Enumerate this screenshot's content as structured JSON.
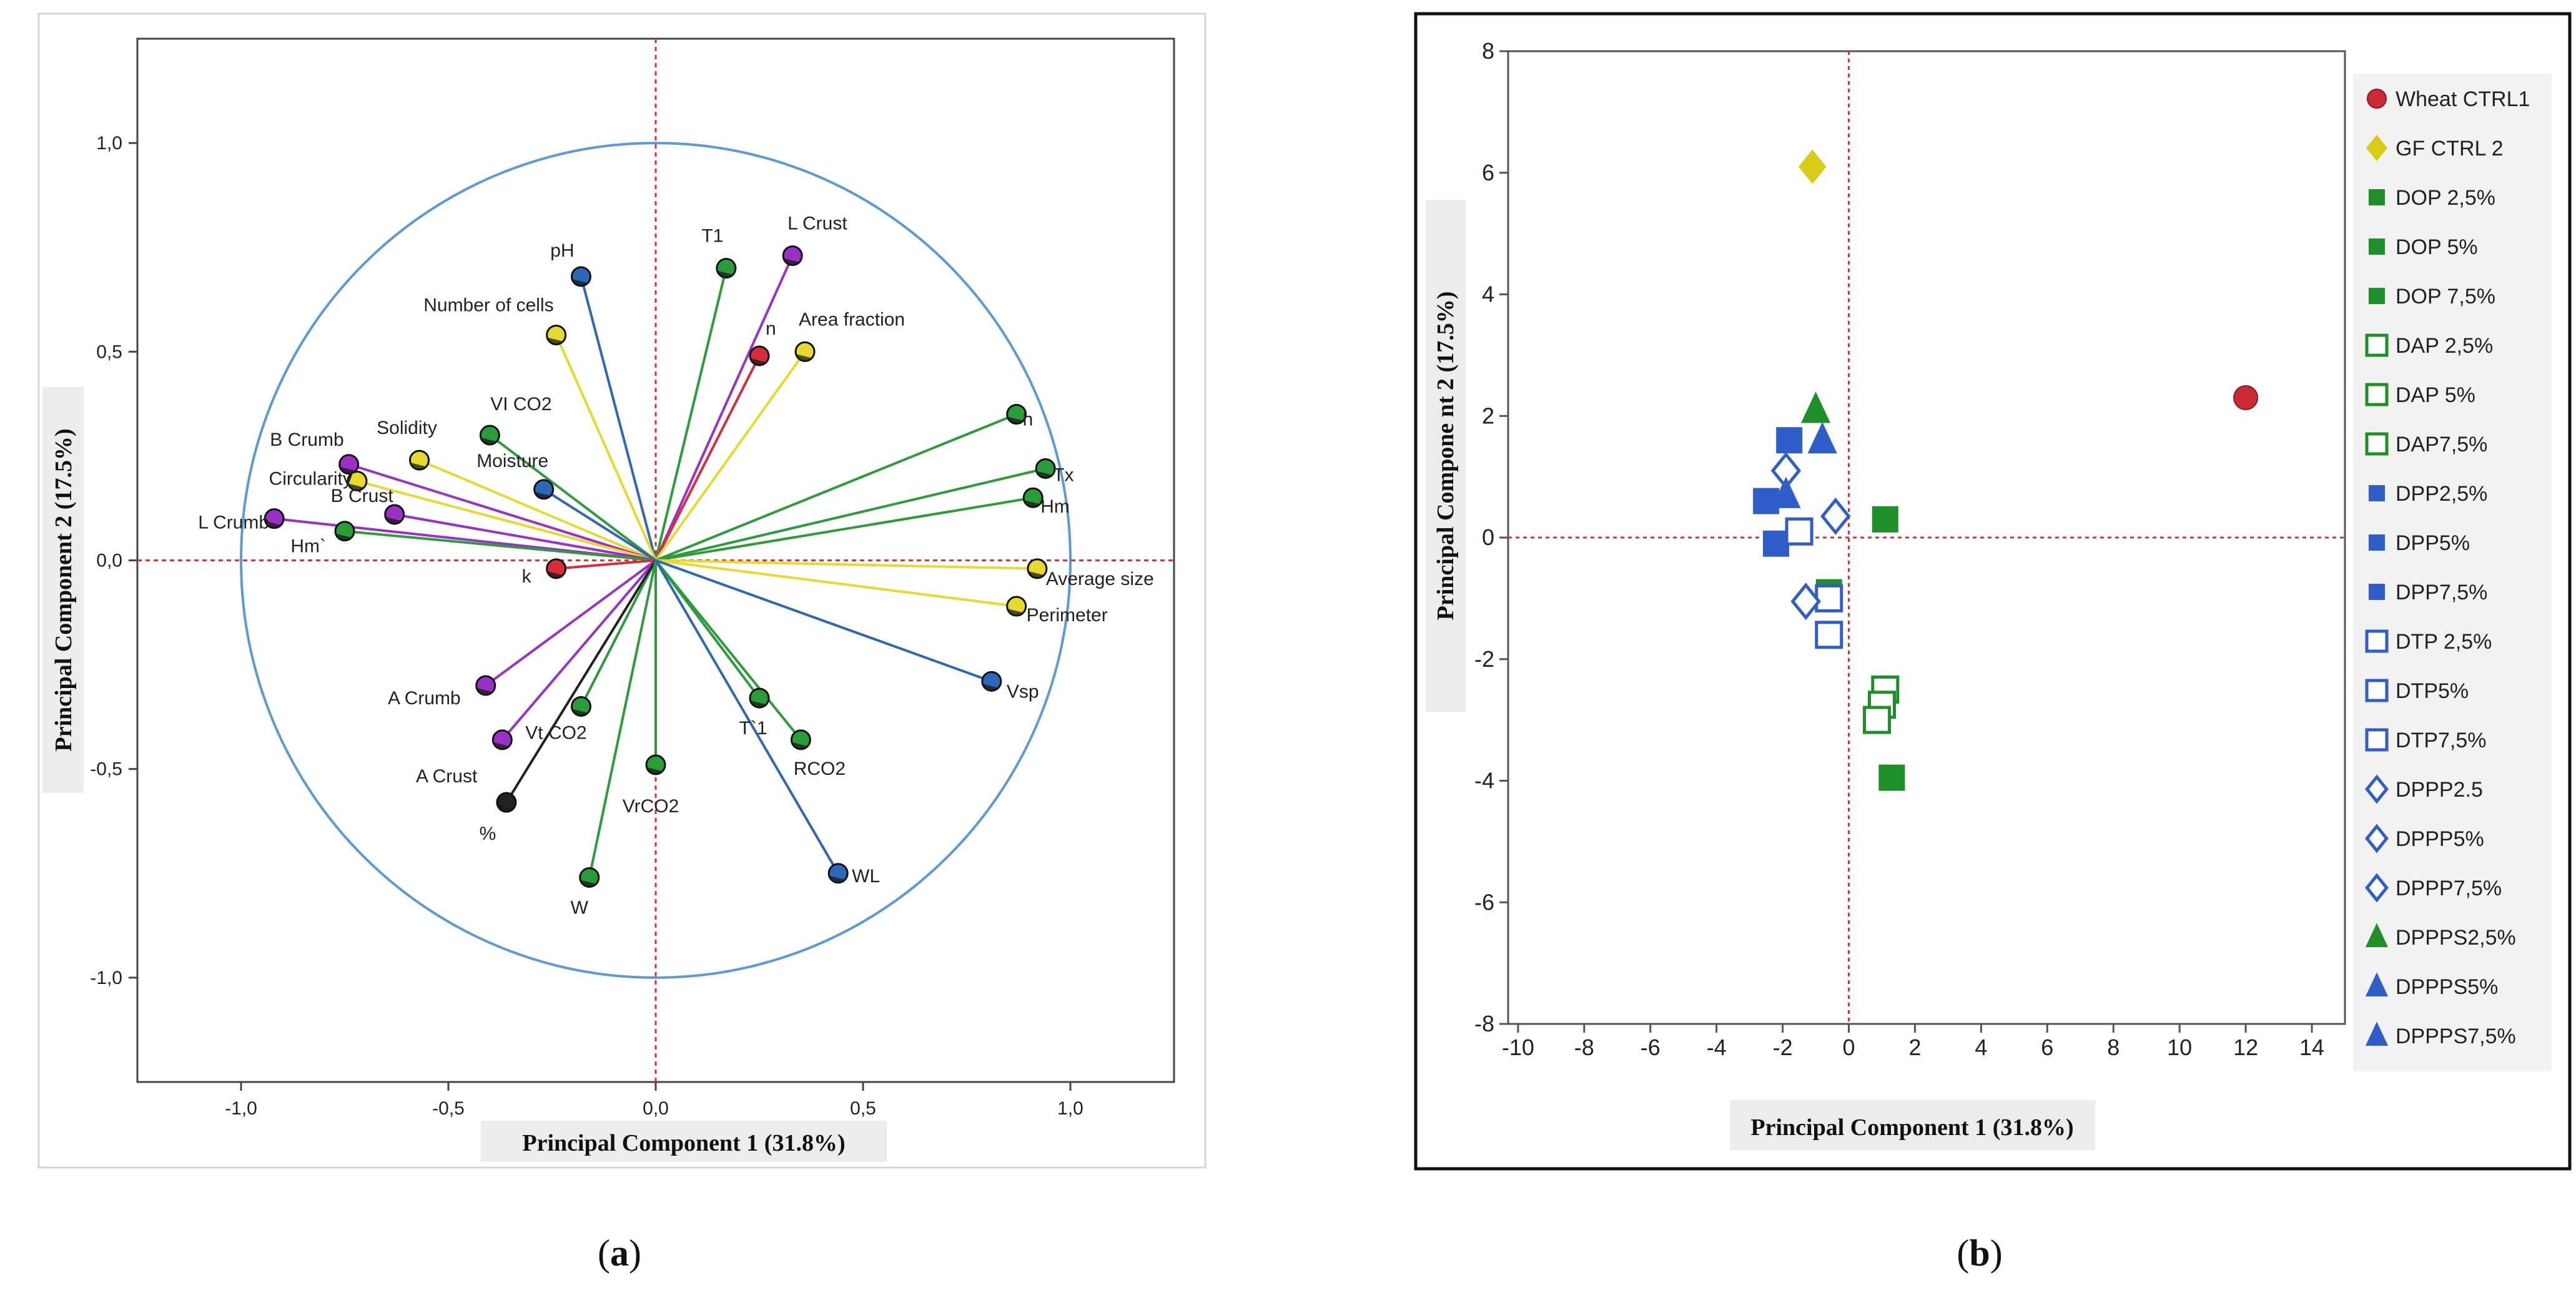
{
  "chart_data": [
    {
      "id": "a",
      "type": "scatter",
      "subtype": "loading_plot",
      "caption": "(a)",
      "caption_letter": "a",
      "xlabel": "Principal Component 1 (31.8%)",
      "ylabel": "Principal Component 2 (17.5%)",
      "xlim": [
        -1.25,
        1.25
      ],
      "ylim": [
        -1.25,
        1.25
      ],
      "xticks": [
        -1.0,
        -0.5,
        0.0,
        0.5,
        1.0
      ],
      "yticks": [
        -1.0,
        -0.5,
        0.0,
        0.5,
        1.0
      ],
      "xtick_labels": [
        "-1,0",
        "-0,5",
        "0,0",
        "0,5",
        "1,0"
      ],
      "ytick_labels": [
        "-1,0",
        "-0,5",
        "0,0",
        "0,5",
        "1,0"
      ],
      "unit_circle": true,
      "reference_lines": {
        "x": 0,
        "y": 0
      },
      "variables": [
        {
          "name": "pH",
          "x": -0.18,
          "y": 0.68,
          "color": "#2e66b8"
        },
        {
          "name": "T1",
          "x": 0.17,
          "y": 0.7,
          "color": "#2a9d3a"
        },
        {
          "name": "L Crust",
          "x": 0.33,
          "y": 0.73,
          "color": "#9b30c8"
        },
        {
          "name": "n",
          "x": 0.25,
          "y": 0.49,
          "color": "#d82c3c"
        },
        {
          "name": "Area fraction",
          "x": 0.36,
          "y": 0.5,
          "color": "#e7d92e"
        },
        {
          "name": "Number of cells",
          "x": -0.24,
          "y": 0.54,
          "color": "#e7d92e"
        },
        {
          "name": "VI CO2",
          "x": -0.4,
          "y": 0.3,
          "color": "#2a9d3a"
        },
        {
          "name": "Solidity",
          "x": -0.57,
          "y": 0.24,
          "color": "#e7d92e"
        },
        {
          "name": "B Crumb",
          "x": -0.74,
          "y": 0.23,
          "color": "#9b30c8"
        },
        {
          "name": "Circularity",
          "x": -0.72,
          "y": 0.19,
          "color": "#e7d92e"
        },
        {
          "name": "Moisture",
          "x": -0.27,
          "y": 0.17,
          "color": "#2e66b8"
        },
        {
          "name": "B Crust",
          "x": -0.63,
          "y": 0.11,
          "color": "#9b30c8"
        },
        {
          "name": "L Crumb",
          "x": -0.92,
          "y": 0.1,
          "color": "#9b30c8"
        },
        {
          "name": "Hm`",
          "x": -0.75,
          "y": 0.07,
          "color": "#2a9d3a"
        },
        {
          "name": "k",
          "x": -0.24,
          "y": -0.02,
          "color": "#d82c3c"
        },
        {
          "name": "h",
          "x": 0.87,
          "y": 0.35,
          "color": "#2a9d3a"
        },
        {
          "name": "Tx",
          "x": 0.94,
          "y": 0.22,
          "color": "#2a9d3a"
        },
        {
          "name": "Hm",
          "x": 0.91,
          "y": 0.15,
          "color": "#2a9d3a"
        },
        {
          "name": "Average size",
          "x": 0.92,
          "y": -0.02,
          "color": "#e7d92e"
        },
        {
          "name": "Perimeter",
          "x": 0.87,
          "y": -0.11,
          "color": "#e7d92e"
        },
        {
          "name": "Vsp",
          "x": 0.81,
          "y": -0.29,
          "color": "#2e66b8"
        },
        {
          "name": "A Crumb",
          "x": -0.41,
          "y": -0.3,
          "color": "#9b30c8"
        },
        {
          "name": "Vt CO2",
          "x": -0.18,
          "y": -0.35,
          "color": "#2a9d3a"
        },
        {
          "name": "T`1",
          "x": 0.25,
          "y": -0.33,
          "color": "#2a9d3a"
        },
        {
          "name": "RCO2",
          "x": 0.35,
          "y": -0.43,
          "color": "#2a9d3a"
        },
        {
          "name": "A Crust",
          "x": -0.37,
          "y": -0.43,
          "color": "#9b30c8"
        },
        {
          "name": "VrCO2",
          "x": 0.0,
          "y": -0.49,
          "color": "#2a9d3a"
        },
        {
          "name": "%",
          "x": -0.36,
          "y": -0.58,
          "color": "#222222"
        },
        {
          "name": "W",
          "x": -0.16,
          "y": -0.76,
          "color": "#2a9d3a"
        },
        {
          "name": "WL",
          "x": 0.44,
          "y": -0.75,
          "color": "#2e66b8"
        }
      ]
    },
    {
      "id": "b",
      "type": "scatter",
      "subtype": "score_plot",
      "caption": "(b)",
      "caption_letter": "b",
      "xlabel": "Principal Component 1 (31.8%)",
      "ylabel": "Principal Compone nt 2 (17.5%)",
      "xlim": [
        -10.3,
        15
      ],
      "ylim": [
        -8,
        8
      ],
      "xticks": [
        -10,
        -8,
        -6,
        -4,
        -2,
        0,
        2,
        4,
        6,
        8,
        10,
        12,
        14
      ],
      "yticks": [
        -8,
        -6,
        -4,
        -2,
        0,
        2,
        4,
        6,
        8
      ],
      "reference_lines": {
        "x": 0,
        "y": 0
      },
      "series": [
        {
          "name": "Wheat  CTRL1",
          "marker": "circle",
          "filled": true,
          "color": "#cc2a36",
          "points": [
            [
              12.0,
              2.3
            ]
          ]
        },
        {
          "name": "GF CTRL 2",
          "marker": "diamond",
          "filled": true,
          "color": "#d8cc18",
          "points": [
            [
              -1.1,
              6.1
            ]
          ]
        },
        {
          "name": "DOP 2,5%",
          "marker": "square",
          "filled": true,
          "color": "#1f8f2a",
          "points": [
            [
              1.1,
              0.3
            ]
          ]
        },
        {
          "name": "DOP 5%",
          "marker": "square",
          "filled": true,
          "color": "#1f8f2a",
          "points": [
            [
              1.3,
              -3.95
            ]
          ]
        },
        {
          "name": "DOP 7,5%",
          "marker": "square",
          "filled": true,
          "color": "#1f8f2a",
          "points": [
            [
              -0.6,
              -0.9
            ]
          ]
        },
        {
          "name": "DAP 2,5%",
          "marker": "square",
          "filled": false,
          "color": "#1f8f2a",
          "points": [
            [
              1.1,
              -2.5
            ]
          ]
        },
        {
          "name": "DAP 5%",
          "marker": "square",
          "filled": false,
          "color": "#1f8f2a",
          "points": [
            [
              1.0,
              -2.75
            ]
          ]
        },
        {
          "name": "DAP7,5%",
          "marker": "square",
          "filled": false,
          "color": "#1f8f2a",
          "points": [
            [
              0.85,
              -3.0
            ]
          ]
        },
        {
          "name": "DPP2,5%",
          "marker": "square",
          "filled": true,
          "color": "#2f5ec8",
          "points": [
            [
              -1.8,
              1.6
            ]
          ]
        },
        {
          "name": "DPP5%",
          "marker": "square",
          "filled": true,
          "color": "#2f5ec8",
          "points": [
            [
              -2.5,
              0.6
            ]
          ]
        },
        {
          "name": "DPP7,5%",
          "marker": "square",
          "filled": true,
          "color": "#2f5ec8",
          "points": [
            [
              -2.2,
              -0.1
            ]
          ]
        },
        {
          "name": "DTP 2,5%",
          "marker": "square",
          "filled": false,
          "color": "#2f5ec8",
          "points": [
            [
              -1.5,
              0.1
            ]
          ]
        },
        {
          "name": "DTP5%",
          "marker": "square",
          "filled": false,
          "color": "#2f5ec8",
          "points": [
            [
              -0.6,
              -1.0
            ]
          ]
        },
        {
          "name": "DTP7,5%",
          "marker": "square",
          "filled": false,
          "color": "#2f5ec8",
          "points": [
            [
              -0.6,
              -1.6
            ]
          ]
        },
        {
          "name": "DPPP2.5",
          "marker": "diamond",
          "filled": false,
          "color": "#2f5ec8",
          "points": [
            [
              -1.9,
              1.1
            ]
          ]
        },
        {
          "name": "DPPP5%",
          "marker": "diamond",
          "filled": false,
          "color": "#2f5ec8",
          "points": [
            [
              -0.4,
              0.35
            ]
          ]
        },
        {
          "name": "DPPP7,5%",
          "marker": "diamond",
          "filled": false,
          "color": "#2f5ec8",
          "points": [
            [
              -1.3,
              -1.05
            ]
          ]
        },
        {
          "name": "DPPPS2,5%",
          "marker": "triangle",
          "filled": true,
          "color": "#1f8f2a",
          "points": [
            [
              -1.0,
              2.1
            ]
          ]
        },
        {
          "name": "DPPPS5%",
          "marker": "triangle",
          "filled": true,
          "color": "#2f5ec8",
          "points": [
            [
              -0.8,
              1.6
            ]
          ]
        },
        {
          "name": "DPPPS7,5%",
          "marker": "triangle",
          "filled": true,
          "color": "#2f5ec8",
          "points": [
            [
              -1.9,
              0.7
            ]
          ]
        }
      ]
    }
  ]
}
